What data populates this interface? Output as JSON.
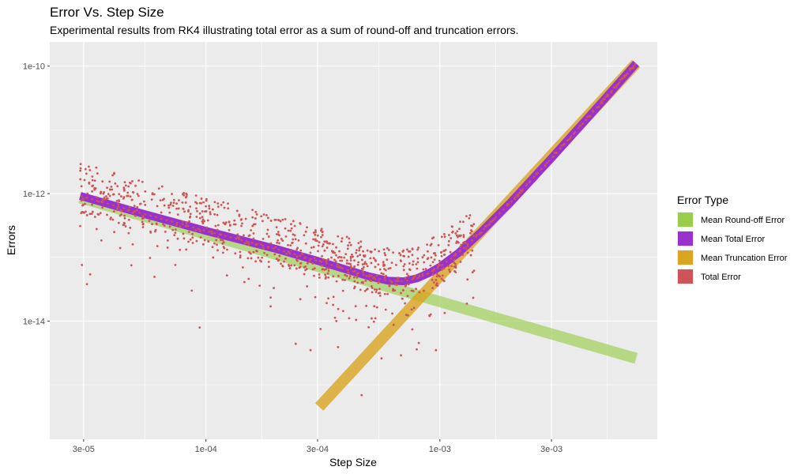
{
  "chart_data": {
    "type": "line",
    "title": "Error Vs. Step Size",
    "subtitle": "Experimental results from RK4 illustrating total error as a sum of round-off and truncation errors.",
    "xlabel": "Step Size",
    "ylabel": "Errors",
    "x_scale": "log10",
    "y_scale": "log10",
    "xlim": [
      2.15e-05,
      0.0085
    ],
    "ylim": [
      1.4e-16,
      2.4e-10
    ],
    "x_ticks": [
      {
        "value": 3e-05,
        "label": "3e-05"
      },
      {
        "value": 0.0001,
        "label": "1e-04"
      },
      {
        "value": 0.0003,
        "label": "3e-04"
      },
      {
        "value": 0.001,
        "label": "1e-03"
      },
      {
        "value": 0.003,
        "label": "3e-03"
      }
    ],
    "y_ticks": [
      {
        "value": 1e-10,
        "label": "1e-10"
      },
      {
        "value": 1e-12,
        "label": "1e-12"
      },
      {
        "value": 1e-14,
        "label": "1e-14"
      }
    ],
    "grid": true,
    "legend": {
      "title": "Error Type",
      "position": "right",
      "entries": [
        {
          "label": "Mean Round-off Error",
          "color": "#9acd4c"
        },
        {
          "label": "Mean Total Error",
          "color": "#9932cc"
        },
        {
          "label": "Mean Truncation Error",
          "color": "#daa520"
        },
        {
          "label": "Total Error",
          "color": "#cd5555"
        }
      ]
    },
    "series": [
      {
        "name": "Mean Round-off Error",
        "kind": "line",
        "color": "#9acd4c",
        "points": [
          [
            2.9e-05,
            8.6e-13
          ],
          [
            0.0069,
            2.6e-15
          ]
        ]
      },
      {
        "name": "Mean Truncation Error",
        "kind": "line",
        "color": "#daa520",
        "points": [
          [
            0.000305,
            4.5e-16
          ],
          [
            0.0069,
            1.1e-10
          ]
        ]
      },
      {
        "name": "Mean Total Error",
        "kind": "line",
        "color": "#9932cc",
        "points": [
          [
            2.9e-05,
            9.2e-13
          ],
          [
            5e-05,
            5.2e-13
          ],
          [
            0.0001,
            2.6e-13
          ],
          [
            0.0002,
            1.35e-13
          ],
          [
            0.0003,
            8.8e-14
          ],
          [
            0.0004,
            6.4e-14
          ],
          [
            0.0005,
            5e-14
          ],
          [
            0.0006,
            4.3e-14
          ],
          [
            0.0007,
            4.2e-14
          ],
          [
            0.0008,
            4.7e-14
          ],
          [
            0.0009,
            5.7e-14
          ],
          [
            0.001,
            7.1e-14
          ],
          [
            0.0012,
            1.17e-13
          ],
          [
            0.0015,
            2.5e-13
          ],
          [
            0.002,
            7.2e-13
          ],
          [
            0.003,
            3.6e-12
          ],
          [
            0.005,
            2.9e-11
          ],
          [
            0.0069,
            1.1e-10
          ]
        ]
      },
      {
        "name": "Total Error",
        "kind": "scatter",
        "color": "#cd5555",
        "description": "about 900 run results scattered around the mean total error for step sizes 2.9e-05 to 1.4e-03 (multiplicative spread up to about 20x below and 2.5x above the mean), then following the mean total error up to 6.9e-03",
        "points": [
          [
            2.9e-05,
            3.1e-13
          ],
          [
            2.95e-05,
            7.6e-14
          ],
          [
            3.2e-05,
            5.4e-14
          ],
          [
            3.1e-05,
            3.8e-14
          ],
          [
            4.3e-05,
            1.4e-13
          ],
          [
            4.8e-05,
            7.5e-14
          ],
          [
            6.2e-05,
            1.5e-13
          ],
          [
            7.4e-05,
            7.6e-14
          ],
          [
            8.7e-05,
            3e-14
          ],
          [
            9.4e-05,
            7.9e-15
          ],
          [
            0.000123,
            5.2e-14
          ],
          [
            0.000146,
            4.1e-14
          ],
          [
            0.000189,
            1.7e-14
          ],
          [
            0.000195,
            3.3e-14
          ],
          [
            0.000242,
            4.4e-15
          ],
          [
            0.00028,
            3.5e-15
          ],
          [
            0.000309,
            7.5e-15
          ],
          [
            0.000351,
            2.4e-14
          ],
          [
            0.000361,
            1e-14
          ],
          [
            0.000367,
            3.9e-15
          ],
          [
            0.000445,
            4e-14
          ],
          [
            0.000463,
            6.9e-16
          ],
          [
            0.000511,
            1.1e-14
          ],
          [
            0.000563,
            2.6e-15
          ],
          [
            0.000634,
            8.7e-15
          ],
          [
            0.000682,
            2.9e-15
          ],
          [
            0.000796,
            3.6e-15
          ],
          [
            0.000904,
            1.2e-14
          ],
          [
            0.000962,
            3.5e-15
          ]
        ],
        "generated_cloud": {
          "count": 900,
          "x_range": [
            2.9e-05,
            0.0014
          ],
          "seed": 20240531
        }
      }
    ]
  }
}
